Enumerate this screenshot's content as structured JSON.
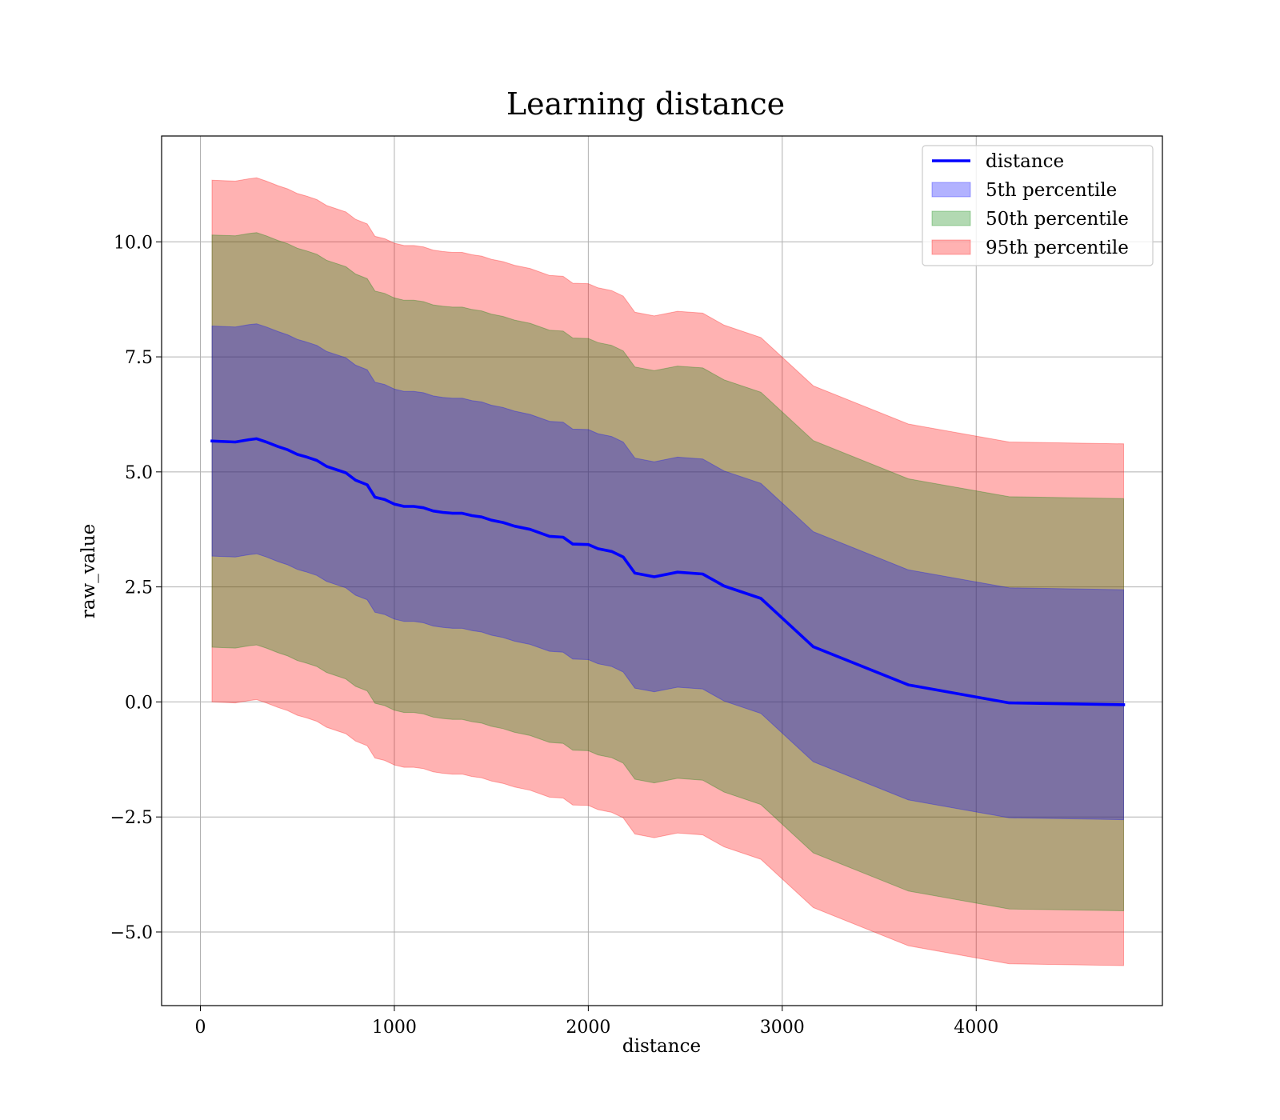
{
  "chart_data": {
    "type": "line",
    "title": "Learning distance",
    "xlabel": "distance",
    "ylabel": "raw_value",
    "xlim": [
      -200,
      4960
    ],
    "ylim": [
      -6.6,
      12.3
    ],
    "xticks": [
      {
        "value": 0,
        "label": "0"
      },
      {
        "value": 1000,
        "label": "1000"
      },
      {
        "value": 2000,
        "label": "2000"
      },
      {
        "value": 3000,
        "label": "3000"
      },
      {
        "value": 4000,
        "label": "4000"
      }
    ],
    "yticks": [
      {
        "value": -5.0,
        "label": "−5.0"
      },
      {
        "value": -2.5,
        "label": "−2.5"
      },
      {
        "value": 0.0,
        "label": "0.0"
      },
      {
        "value": 2.5,
        "label": "2.5"
      },
      {
        "value": 5.0,
        "label": "5.0"
      },
      {
        "value": 7.5,
        "label": "7.5"
      },
      {
        "value": 10.0,
        "label": "10.0"
      }
    ],
    "grid": true,
    "legend_position": "top-right",
    "legend": [
      {
        "label": "distance",
        "kind": "line",
        "color": "#0000ff"
      },
      {
        "label": "5th percentile",
        "kind": "patch",
        "color": "#0000ff"
      },
      {
        "label": "50th percentile",
        "kind": "patch",
        "color": "#008000"
      },
      {
        "label": "95th percentile",
        "kind": "patch",
        "color": "#ff0000"
      }
    ],
    "x": [
      60,
      180,
      250,
      290,
      340,
      400,
      450,
      500,
      550,
      600,
      650,
      700,
      750,
      800,
      860,
      900,
      950,
      1000,
      1050,
      1100,
      1150,
      1200,
      1250,
      1300,
      1350,
      1400,
      1450,
      1500,
      1560,
      1620,
      1700,
      1800,
      1870,
      1920,
      2000,
      2050,
      2120,
      2180,
      2240,
      2340,
      2460,
      2590,
      2700,
      2890,
      3160,
      3650,
      4170,
      4760
    ],
    "series": [
      {
        "name": "distance",
        "color": "#0000ff",
        "values": [
          5.67,
          5.65,
          5.7,
          5.72,
          5.65,
          5.55,
          5.48,
          5.38,
          5.32,
          5.25,
          5.12,
          5.05,
          4.98,
          4.82,
          4.72,
          4.45,
          4.4,
          4.3,
          4.25,
          4.25,
          4.22,
          4.15,
          4.12,
          4.1,
          4.1,
          4.05,
          4.02,
          3.95,
          3.9,
          3.82,
          3.75,
          3.6,
          3.58,
          3.43,
          3.42,
          3.33,
          3.27,
          3.15,
          2.8,
          2.72,
          2.82,
          2.78,
          2.52,
          2.25,
          1.2,
          0.37,
          -0.02,
          -0.06
        ]
      }
    ],
    "bands": [
      {
        "name": "95th percentile",
        "color": "#ff0000",
        "alpha": 0.3,
        "offset": 5.67
      },
      {
        "name": "50th percentile",
        "color": "#008000",
        "alpha": 0.3,
        "offset": 4.48
      },
      {
        "name": "5th percentile",
        "color": "#0000ff",
        "alpha": 0.3,
        "offset": 2.5
      }
    ]
  }
}
